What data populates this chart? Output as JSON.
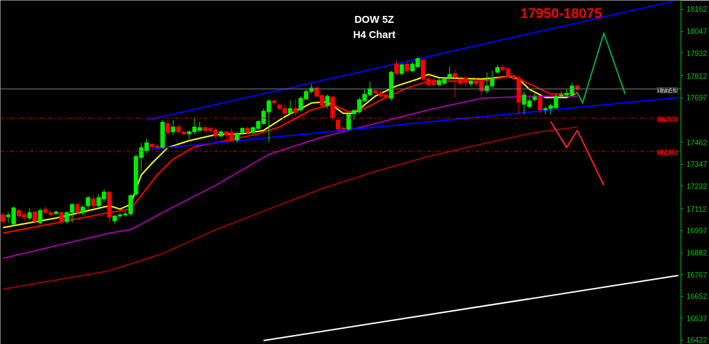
{
  "chart_data": {
    "type": "candlestick",
    "title": "DOW 5Z",
    "subtitle": "H4 Chart",
    "annotations": [
      "17950-18075"
    ],
    "categories": [
      null,
      null,
      null,
      null,
      null,
      null,
      null,
      null,
      null,
      null,
      null,
      null,
      null,
      null,
      null,
      null,
      null,
      null,
      null,
      null,
      null,
      null,
      null,
      null,
      null,
      null,
      null,
      null,
      null,
      null,
      null,
      null,
      null,
      null,
      null,
      null,
      null,
      null,
      null,
      null,
      null,
      null,
      null,
      null,
      null,
      null,
      null,
      null,
      null,
      null,
      null,
      null,
      null,
      null,
      null,
      null,
      null,
      null,
      null,
      null,
      null,
      null,
      null,
      null,
      null,
      null,
      null,
      null,
      null,
      null,
      null,
      null,
      null,
      null,
      null,
      null,
      null,
      null,
      null,
      null,
      null,
      null,
      null,
      null,
      null,
      null,
      null,
      null,
      null,
      null,
      null,
      null,
      null,
      null,
      null,
      null,
      null,
      null,
      null,
      null,
      null,
      null,
      null,
      null,
      null,
      null,
      null,
      null,
      null,
      null,
      null,
      null,
      null,
      null,
      null,
      null,
      null,
      null,
      null,
      null,
      null,
      null,
      null,
      null,
      null,
      null,
      null,
      null
    ],
    "ohlc": [
      [
        17082,
        17093,
        17028,
        17046
      ],
      [
        17071,
        17095,
        17040,
        17080
      ],
      [
        17032,
        17125,
        17020,
        17118
      ],
      [
        17104,
        17110,
        17070,
        17075
      ],
      [
        17082,
        17095,
        17055,
        17068
      ],
      [
        17064,
        17115,
        17050,
        17093
      ],
      [
        17097,
        17100,
        17040,
        17046
      ],
      [
        17039,
        17115,
        17030,
        17104
      ],
      [
        17111,
        17125,
        17085,
        17093
      ],
      [
        17093,
        17100,
        17075,
        17082
      ],
      [
        17086,
        17102,
        17085,
        17097
      ],
      [
        17093,
        17100,
        17040,
        17046
      ],
      [
        17046,
        17100,
        17035,
        17093
      ],
      [
        17093,
        17140,
        17040,
        17136
      ],
      [
        17136,
        17140,
        17085,
        17093
      ],
      [
        17093,
        17130,
        17080,
        17122
      ],
      [
        17129,
        17180,
        17110,
        17172
      ],
      [
        17165,
        17185,
        17115,
        17129
      ],
      [
        17129,
        17190,
        17120,
        17172
      ],
      [
        17165,
        17215,
        17150,
        17201
      ],
      [
        17201,
        17201,
        17040,
        17068
      ],
      [
        17050,
        17080,
        17035,
        17075
      ],
      [
        17075,
        17090,
        17065,
        17082
      ],
      [
        17080,
        17100,
        17070,
        17086
      ],
      [
        17086,
        17190,
        17075,
        17183
      ],
      [
        17190,
        17400,
        17180,
        17388
      ],
      [
        17383,
        17460,
        17310,
        17435
      ],
      [
        17417,
        17480,
        17405,
        17460
      ],
      [
        17453,
        17455,
        17435,
        17439
      ],
      [
        17442,
        17455,
        17430,
        17435
      ],
      [
        17435,
        17580,
        17430,
        17568
      ],
      [
        17561,
        17580,
        17500,
        17514
      ],
      [
        17518,
        17580,
        17500,
        17543
      ],
      [
        17543,
        17555,
        17510,
        17518
      ],
      [
        17518,
        17520,
        17500,
        17507
      ],
      [
        17507,
        17525,
        17480,
        17518
      ],
      [
        17518,
        17590,
        17505,
        17543
      ],
      [
        17525,
        17570,
        17520,
        17540
      ],
      [
        17540,
        17550,
        17515,
        17525
      ],
      [
        17535,
        17545,
        17515,
        17525
      ],
      [
        17529,
        17535,
        17480,
        17496
      ],
      [
        17496,
        17525,
        17485,
        17518
      ],
      [
        17518,
        17520,
        17470,
        17503
      ],
      [
        17514,
        17535,
        17465,
        17471
      ],
      [
        17475,
        17520,
        17460,
        17510
      ],
      [
        17514,
        17540,
        17505,
        17536
      ],
      [
        17536,
        17545,
        17505,
        17514
      ],
      [
        17514,
        17545,
        17505,
        17540
      ],
      [
        17536,
        17580,
        17530,
        17572
      ],
      [
        17561,
        17640,
        17555,
        17626
      ],
      [
        17622,
        17690,
        17464,
        17680
      ],
      [
        17680,
        17690,
        17660,
        17670
      ],
      [
        17658,
        17665,
        17630,
        17640
      ],
      [
        17640,
        17660,
        17605,
        17615
      ],
      [
        17615,
        17685,
        17610,
        17640
      ],
      [
        17640,
        17690,
        17600,
        17620
      ],
      [
        17633,
        17705,
        17625,
        17694
      ],
      [
        17690,
        17740,
        17685,
        17730
      ],
      [
        17730,
        17770,
        17720,
        17748
      ],
      [
        17748,
        17755,
        17700,
        17705
      ],
      [
        17709,
        17715,
        17650,
        17655
      ],
      [
        17655,
        17715,
        17640,
        17705
      ],
      [
        17701,
        17705,
        17575,
        17594
      ],
      [
        17579,
        17590,
        17525,
        17532
      ],
      [
        17537,
        17545,
        17525,
        17532
      ],
      [
        17532,
        17615,
        17525,
        17608
      ],
      [
        17612,
        17635,
        17580,
        17630
      ],
      [
        17622,
        17700,
        17610,
        17687
      ],
      [
        17680,
        17740,
        17675,
        17716
      ],
      [
        17712,
        17780,
        17705,
        17745
      ],
      [
        17734,
        17740,
        17715,
        17723
      ],
      [
        17723,
        17735,
        17700,
        17705
      ],
      [
        17712,
        17720,
        17690,
        17698
      ],
      [
        17694,
        17840,
        17680,
        17831
      ],
      [
        17874,
        17890,
        17815,
        17824
      ],
      [
        17824,
        17880,
        17815,
        17870
      ],
      [
        17874,
        17885,
        17825,
        17838
      ],
      [
        17838,
        17885,
        17830,
        17874
      ],
      [
        17860,
        17910,
        17855,
        17903
      ],
      [
        17896,
        17900,
        17785,
        17795
      ],
      [
        17795,
        17815,
        17755,
        17766
      ],
      [
        17790,
        17800,
        17755,
        17766
      ],
      [
        17766,
        17800,
        17755,
        17788
      ],
      [
        17773,
        17805,
        17765,
        17795
      ],
      [
        17802,
        17860,
        17790,
        17820
      ],
      [
        17824,
        17845,
        17698,
        17806
      ],
      [
        17795,
        17810,
        17760,
        17773
      ],
      [
        17802,
        17810,
        17760,
        17777
      ],
      [
        17770,
        17795,
        17755,
        17785
      ],
      [
        17785,
        17800,
        17755,
        17770
      ],
      [
        17784,
        17790,
        17710,
        17734
      ],
      [
        17734,
        17830,
        17720,
        17759
      ],
      [
        17759,
        17840,
        17750,
        17802
      ],
      [
        17831,
        17870,
        17825,
        17856
      ],
      [
        17856,
        17870,
        17835,
        17845
      ],
      [
        17849,
        17855,
        17805,
        17813
      ],
      [
        17813,
        17820,
        17790,
        17800
      ],
      [
        17802,
        17810,
        17608,
        17673
      ],
      [
        17662,
        17730,
        17610,
        17712
      ],
      [
        17650,
        17700,
        17640,
        17680
      ],
      [
        17687,
        17720,
        17675,
        17700
      ],
      [
        17698,
        17705,
        17610,
        17633
      ],
      [
        17633,
        17650,
        17610,
        17640
      ],
      [
        17640,
        17665,
        17610,
        17655
      ],
      [
        17644,
        17715,
        17640,
        17705
      ],
      [
        17705,
        17730,
        17695,
        17712
      ],
      [
        17712,
        17740,
        17700,
        17720
      ],
      [
        17716,
        17775,
        17710,
        17759
      ],
      [
        17759,
        17765,
        17735,
        17741
      ],
      null,
      null,
      null,
      null,
      null,
      null,
      null,
      null,
      null,
      null,
      null,
      null,
      null,
      null,
      null,
      null,
      null,
      null,
      null
    ],
    "series": [
      {
        "type": "line",
        "color": "#ffff00",
        "values": [
          17014,
          null,
          null,
          null,
          null,
          null,
          null,
          null,
          null,
          null,
          17064,
          null,
          null,
          null,
          null,
          null,
          null,
          null,
          null,
          null,
          17129,
          null,
          17111,
          null,
          17136,
          null,
          17291,
          null,
          17352,
          null,
          null,
          17435,
          null,
          null,
          null,
          17471,
          null,
          null,
          null,
          null,
          17503,
          null,
          null,
          null,
          null,
          17507,
          null,
          null,
          null,
          17525,
          null,
          null,
          null,
          17597,
          null,
          null,
          null,
          null,
          17669,
          null,
          null,
          17676,
          null,
          null,
          17615,
          null,
          17615,
          null,
          null,
          null,
          17705,
          null,
          null,
          null,
          17759,
          null,
          null,
          null,
          17795,
          null,
          17820,
          null,
          17802,
          null,
          null,
          null,
          null,
          null,
          null,
          null,
          17795,
          null,
          null,
          null,
          null,
          17809,
          null,
          17795,
          null,
          17741,
          null,
          null,
          17698,
          null,
          null,
          null,
          17698,
          null,
          17723,
          null,
          null,
          null,
          null,
          null,
          null,
          null,
          null,
          null,
          null,
          null,
          null,
          null,
          null,
          null,
          null,
          null,
          null,
          null
        ]
      },
      {
        "type": "line",
        "color": "#ff0000",
        "values": [
          16985,
          null,
          null,
          null,
          null,
          null,
          null,
          null,
          null,
          null,
          17039,
          null,
          null,
          null,
          null,
          null,
          null,
          null,
          null,
          null,
          17093,
          null,
          null,
          null,
          17111,
          null,
          17183,
          null,
          null,
          17291,
          null,
          null,
          17374,
          null,
          null,
          null,
          17439,
          null,
          null,
          null,
          null,
          null,
          17471,
          null,
          null,
          null,
          null,
          null,
          17507,
          null,
          null,
          null,
          17543,
          null,
          null,
          null,
          null,
          null,
          17633,
          null,
          null,
          null,
          17662,
          null,
          null,
          17622,
          null,
          null,
          17640,
          null,
          null,
          null,
          17698,
          null,
          null,
          null,
          17748,
          null,
          null,
          null,
          17784,
          null,
          null,
          null,
          null,
          null,
          null,
          null,
          null,
          null,
          17784,
          null,
          null,
          null,
          null,
          null,
          17813,
          null,
          null,
          17770,
          null,
          null,
          null,
          17716,
          null,
          null,
          null,
          null,
          17719,
          null,
          null,
          null,
          null,
          null,
          null,
          null,
          null,
          null,
          null,
          null,
          null,
          null,
          null,
          null,
          null,
          null,
          null,
          null
        ]
      },
      {
        "type": "line",
        "color": "#a000a0",
        "values": [
          16852,
          null,
          null,
          null,
          null,
          null,
          null,
          null,
          null,
          null,
          null,
          null,
          null,
          null,
          null,
          null,
          null,
          null,
          null,
          null,
          16985,
          null,
          null,
          null,
          17003,
          null,
          null,
          null,
          null,
          null,
          17093,
          null,
          null,
          null,
          null,
          null,
          null,
          null,
          null,
          null,
          17237,
          null,
          null,
          null,
          null,
          null,
          null,
          null,
          null,
          null,
          17399,
          null,
          null,
          null,
          null,
          null,
          null,
          null,
          null,
          null,
          17489,
          null,
          null,
          null,
          null,
          null,
          null,
          null,
          null,
          null,
          17561,
          null,
          null,
          null,
          null,
          null,
          null,
          null,
          null,
          null,
          17633,
          null,
          null,
          null,
          null,
          null,
          null,
          null,
          null,
          null,
          17694,
          null,
          null,
          null,
          null,
          null,
          null,
          null,
          null,
          null,
          17705,
          null,
          null,
          null,
          null,
          null,
          null,
          null,
          17705,
          null,
          null,
          null,
          null,
          null,
          null,
          null,
          null,
          null,
          null,
          null,
          null,
          null,
          null,
          null,
          null,
          null,
          null,
          null
        ]
      },
      {
        "type": "line",
        "color": "#990000",
        "values": [
          16690,
          null,
          null,
          null,
          null,
          null,
          null,
          null,
          null,
          null,
          null,
          null,
          null,
          null,
          null,
          null,
          null,
          null,
          null,
          null,
          16787,
          null,
          null,
          null,
          null,
          null,
          null,
          null,
          null,
          null,
          16877,
          null,
          null,
          null,
          null,
          null,
          null,
          null,
          null,
          null,
          17003,
          null,
          null,
          null,
          null,
          null,
          null,
          null,
          null,
          null,
          17111,
          null,
          null,
          null,
          null,
          null,
          null,
          null,
          null,
          null,
          17219,
          null,
          null,
          null,
          null,
          null,
          null,
          null,
          null,
          null,
          17309,
          null,
          null,
          null,
          null,
          null,
          null,
          null,
          null,
          null,
          17388,
          null,
          null,
          null,
          null,
          null,
          null,
          null,
          null,
          null,
          17453,
          null,
          null,
          null,
          null,
          null,
          null,
          null,
          null,
          null,
          17514,
          null,
          null,
          null,
          null,
          null,
          null,
          null,
          17543,
          null,
          null,
          null,
          null,
          null,
          null,
          null,
          null,
          null,
          null,
          null,
          null,
          null,
          null,
          null,
          null,
          null,
          null,
          null
        ]
      },
      {
        "type": "line",
        "color": "#0000ff",
        "values": [
          null,
          null,
          null,
          null,
          null,
          null,
          null,
          null,
          null,
          null,
          null,
          null,
          null,
          null,
          null,
          null,
          null,
          null,
          null,
          null,
          null,
          null,
          null,
          null,
          null,
          null,
          null,
          17579,
          null,
          null,
          null,
          null,
          null,
          null,
          null,
          null,
          null,
          null,
          null,
          null,
          null,
          null,
          null,
          null,
          null,
          null,
          null,
          null,
          null,
          null,
          null,
          null,
          null,
          null,
          null,
          null,
          null,
          null,
          null,
          null,
          null,
          null,
          null,
          null,
          null,
          null,
          null,
          null,
          null,
          null,
          null,
          null,
          null,
          null,
          null,
          null,
          null,
          null,
          null,
          null,
          null,
          null,
          null,
          null,
          null,
          null,
          null,
          null,
          null,
          null,
          null,
          null,
          null,
          null,
          null,
          null,
          null,
          null,
          null,
          null,
          null,
          null,
          null,
          null,
          null,
          null,
          null,
          null,
          null,
          null,
          null,
          null,
          null,
          null,
          null,
          null,
          null,
          null,
          null,
          null,
          null,
          null,
          null,
          null,
          null,
          null,
          18204,
          null
        ]
      },
      {
        "type": "line",
        "color": "#0000ff",
        "values": [
          null,
          null,
          null,
          null,
          null,
          null,
          null,
          null,
          null,
          null,
          null,
          null,
          null,
          null,
          null,
          null,
          null,
          null,
          null,
          null,
          null,
          null,
          null,
          null,
          null,
          null,
          null,
          17424,
          null,
          null,
          null,
          null,
          null,
          null,
          null,
          null,
          null,
          null,
          null,
          null,
          null,
          null,
          null,
          null,
          null,
          null,
          null,
          null,
          null,
          null,
          null,
          null,
          null,
          null,
          null,
          null,
          null,
          null,
          null,
          null,
          null,
          null,
          null,
          null,
          null,
          null,
          null,
          null,
          null,
          null,
          null,
          null,
          null,
          null,
          null,
          null,
          null,
          null,
          null,
          null,
          null,
          null,
          null,
          null,
          null,
          null,
          null,
          null,
          null,
          null,
          null,
          null,
          null,
          null,
          null,
          null,
          null,
          null,
          null,
          null,
          null,
          null,
          null,
          null,
          null,
          null,
          null,
          null,
          null,
          null,
          null,
          null,
          null,
          null,
          null,
          null,
          null,
          null,
          null,
          null,
          null,
          null,
          null,
          null,
          null,
          null,
          null,
          17698
        ]
      },
      {
        "type": "line",
        "color": "#ffffff",
        "values": [
          null,
          null,
          null,
          null,
          null,
          null,
          null,
          null,
          null,
          null,
          null,
          null,
          null,
          null,
          null,
          null,
          null,
          null,
          null,
          null,
          null,
          null,
          null,
          null,
          null,
          null,
          null,
          null,
          null,
          null,
          null,
          null,
          null,
          null,
          null,
          null,
          null,
          null,
          null,
          null,
          null,
          null,
          null,
          null,
          null,
          null,
          null,
          null,
          null,
          16420,
          null,
          null,
          null,
          null,
          null,
          null,
          null,
          null,
          null,
          null,
          null,
          null,
          null,
          null,
          null,
          null,
          null,
          null,
          null,
          null,
          null,
          null,
          null,
          null,
          null,
          null,
          null,
          null,
          null,
          null,
          null,
          null,
          null,
          null,
          null,
          null,
          null,
          null,
          null,
          null,
          null,
          null,
          null,
          null,
          null,
          null,
          null,
          null,
          null,
          null,
          null,
          null,
          null,
          null,
          null,
          null,
          null,
          null,
          null,
          null,
          null,
          null,
          null,
          null,
          null,
          null,
          null,
          null,
          null,
          null,
          null,
          null,
          null,
          null,
          null,
          null,
          null,
          16762
        ]
      },
      {
        "type": "line",
        "color": "#00aa44",
        "values": [
          null,
          null,
          null,
          null,
          null,
          null,
          null,
          null,
          null,
          null,
          null,
          null,
          null,
          null,
          null,
          null,
          null,
          null,
          null,
          null,
          null,
          null,
          null,
          null,
          null,
          null,
          null,
          null,
          null,
          null,
          null,
          null,
          null,
          null,
          null,
          null,
          null,
          null,
          null,
          null,
          null,
          null,
          null,
          null,
          null,
          null,
          null,
          null,
          null,
          null,
          null,
          null,
          null,
          null,
          null,
          null,
          null,
          null,
          null,
          null,
          null,
          null,
          null,
          null,
          null,
          null,
          null,
          null,
          null,
          null,
          null,
          null,
          null,
          null,
          null,
          null,
          null,
          null,
          null,
          null,
          null,
          null,
          null,
          null,
          null,
          null,
          null,
          null,
          null,
          null,
          null,
          null,
          null,
          null,
          null,
          null,
          null,
          null,
          null,
          null,
          null,
          null,
          null,
          null,
          null,
          null,
          null,
          null,
          17723,
          17669,
          null,
          null,
          null,
          18036,
          null,
          null,
          null,
          17716,
          null,
          null,
          null,
          null,
          null,
          null,
          null,
          null,
          null,
          null
        ]
      },
      {
        "type": "line",
        "color": "#ff2020",
        "values": [
          null,
          null,
          null,
          null,
          null,
          null,
          null,
          null,
          null,
          null,
          null,
          null,
          null,
          null,
          null,
          null,
          null,
          null,
          null,
          null,
          null,
          null,
          null,
          null,
          null,
          null,
          null,
          null,
          null,
          null,
          null,
          null,
          null,
          null,
          null,
          null,
          null,
          null,
          null,
          null,
          null,
          null,
          null,
          null,
          null,
          null,
          null,
          null,
          null,
          null,
          null,
          null,
          null,
          null,
          null,
          null,
          null,
          null,
          null,
          null,
          null,
          null,
          null,
          null,
          null,
          null,
          null,
          null,
          null,
          null,
          null,
          null,
          null,
          null,
          null,
          null,
          null,
          null,
          null,
          null,
          null,
          null,
          null,
          null,
          null,
          null,
          null,
          null,
          null,
          null,
          null,
          null,
          null,
          null,
          null,
          null,
          null,
          null,
          null,
          null,
          null,
          null,
          null,
          17572,
          null,
          null,
          17435,
          null,
          17525,
          null,
          null,
          null,
          null,
          17237,
          null,
          null,
          null,
          null,
          null,
          null,
          null,
          null,
          null,
          null,
          null,
          null,
          null,
          null
        ]
      }
    ],
    "ylim": [
      16400,
      18209
    ],
    "yticks": [
      16422,
      16537,
      16652,
      16767,
      16882,
      16997,
      17112,
      17232,
      17347,
      17462,
      17697,
      17812,
      17932,
      18047,
      18162
    ],
    "ref_lines": [
      {
        "axis": "y",
        "value": 17590,
        "label": "17590",
        "color": "#cc0000",
        "line_style": "dashed"
      },
      {
        "axis": "y",
        "value": 17416,
        "label": "17416",
        "color": "#cc0000",
        "line_style": "dashed"
      },
      {
        "axis": "y",
        "value": 17743,
        "label": "17743",
        "color": "#808080",
        "line_style": "solid"
      }
    ],
    "tick_labels": "y",
    "grid": false
  }
}
